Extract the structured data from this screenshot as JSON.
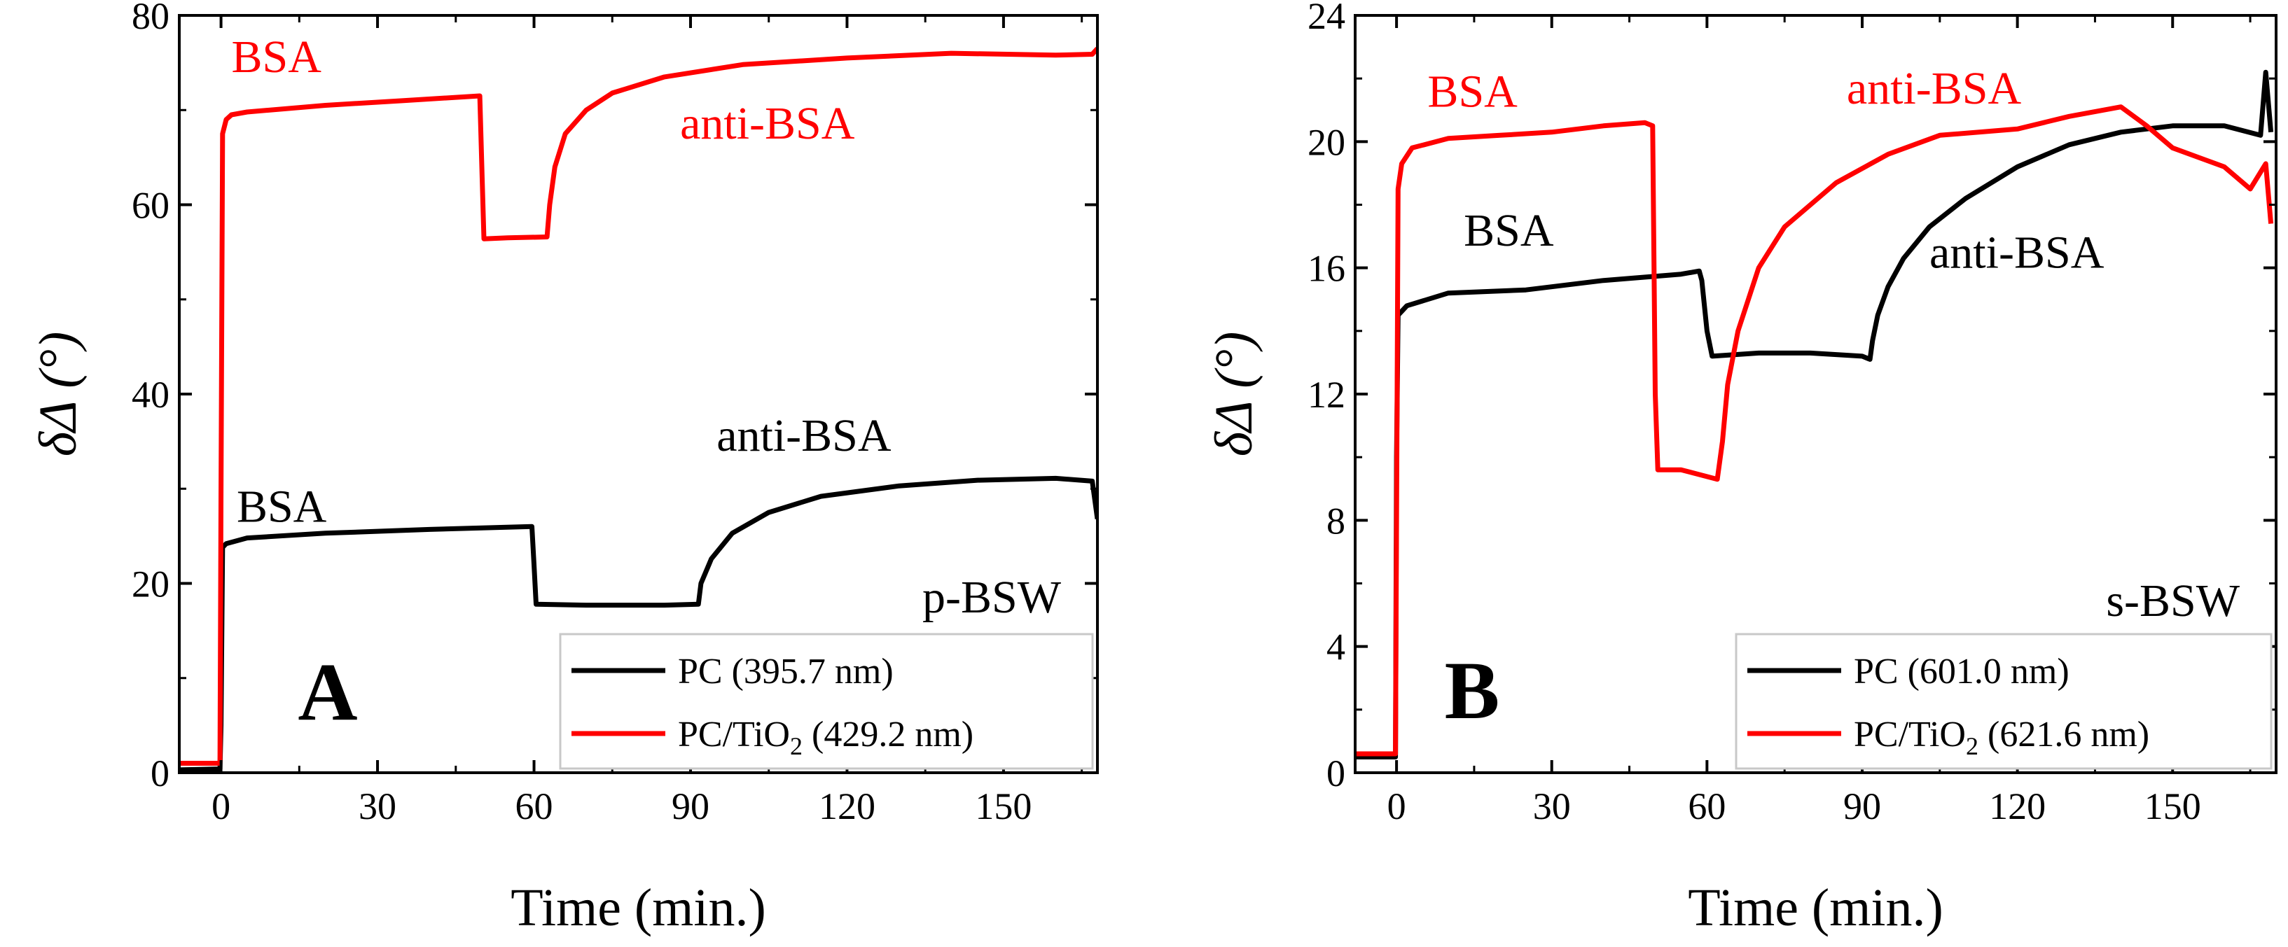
{
  "colors": {
    "pc": "#000000",
    "pc_tio2": "#ff0000",
    "axis": "#000000",
    "background": "#ffffff"
  },
  "chart_data": [
    {
      "type": "line",
      "panel_label": "A",
      "xlabel": "Time (min.)",
      "ylabel": "δΔ (°)",
      "xlim": [
        -8,
        168
      ],
      "ylim": [
        0,
        80
      ],
      "xticks": [
        "0",
        "30",
        "60",
        "90",
        "120",
        "150"
      ],
      "yticks": [
        "0",
        "20",
        "40",
        "60",
        "80"
      ],
      "mode_label": "p-BSW",
      "legend": {
        "position": "bottom-right",
        "items": [
          {
            "label": "PC (395.7 nm)"
          },
          {
            "label": "PC/TiO",
            "sub": "2",
            "label_rest": " (429.2 nm)"
          }
        ]
      },
      "series": [
        {
          "name": "PC (395.7 nm)",
          "color": "#000000",
          "x": [
            -8,
            -0.2,
            0,
            0.3,
            1,
            5,
            20,
            40,
            59.6,
            60,
            60.4,
            70,
            85,
            91.5,
            92,
            94,
            98,
            105,
            115,
            130,
            145,
            160,
            167,
            168
          ],
          "y": [
            0.3,
            0.4,
            5,
            23.8,
            24.2,
            24.8,
            25.3,
            25.7,
            26,
            22,
            17.8,
            17.7,
            17.7,
            17.8,
            20,
            22.6,
            25.3,
            27.5,
            29.2,
            30.3,
            30.9,
            31.1,
            30.8,
            26.8
          ],
          "annotations": [
            {
              "text": "BSA",
              "x": 3,
              "y": 26.5
            },
            {
              "text": "anti-BSA",
              "x": 95,
              "y": 34
            }
          ]
        },
        {
          "name": "PC/TiO2 (429.2 nm)",
          "color": "#ff0000",
          "x": [
            -8,
            -0.2,
            0,
            0.3,
            1,
            2,
            5,
            20,
            35,
            49.6,
            50,
            50.4,
            55,
            62.5,
            63,
            64,
            66,
            70,
            75,
            85,
            100,
            120,
            140,
            160,
            167,
            168
          ],
          "y": [
            1,
            1,
            30,
            67.5,
            69,
            69.5,
            69.8,
            70.5,
            71,
            71.5,
            64,
            56.4,
            56.5,
            56.6,
            60,
            64,
            67.5,
            70,
            71.8,
            73.5,
            74.8,
            75.5,
            76,
            75.8,
            75.9,
            76.5
          ],
          "annotations": [
            {
              "text": "BSA",
              "x": 2,
              "y": 74
            },
            {
              "text": "anti-BSA",
              "x": 88,
              "y": 67
            }
          ]
        }
      ]
    },
    {
      "type": "line",
      "panel_label": "B",
      "xlabel": "Time (min.)",
      "ylabel": "δΔ (°)",
      "xlim": [
        -8,
        170
      ],
      "ylim": [
        0,
        24
      ],
      "xticks": [
        "0",
        "30",
        "60",
        "90",
        "120",
        "150"
      ],
      "yticks": [
        "0",
        "4",
        "8",
        "12",
        "16",
        "20",
        "24"
      ],
      "mode_label": "s-BSW",
      "legend": {
        "position": "bottom-right",
        "items": [
          {
            "label": "PC (601.0 nm)"
          },
          {
            "label": "PC/TiO",
            "sub": "2",
            "label_rest": " (621.6 nm)"
          }
        ]
      },
      "series": [
        {
          "name": "PC (601.0 nm)",
          "color": "#000000",
          "x": [
            -8,
            -0.2,
            0,
            0.3,
            2,
            10,
            25,
            40,
            55,
            58.5,
            59,
            60,
            61,
            70,
            80,
            90,
            91.5,
            92,
            93,
            95,
            98,
            103,
            110,
            120,
            130,
            140,
            150,
            160,
            167,
            168,
            169
          ],
          "y": [
            0.5,
            0.5,
            10,
            14.5,
            14.8,
            15.2,
            15.3,
            15.6,
            15.8,
            15.9,
            15.6,
            14,
            13.2,
            13.3,
            13.3,
            13.2,
            13.1,
            13.7,
            14.5,
            15.4,
            16.3,
            17.3,
            18.2,
            19.2,
            19.9,
            20.3,
            20.5,
            20.5,
            20.2,
            22.2,
            20.3
          ],
          "annotations": [
            {
              "text": "BSA",
              "x": 13,
              "y": 16.7
            },
            {
              "text": "anti-BSA",
              "x": 103,
              "y": 16
            }
          ]
        },
        {
          "name": "PC/TiO2 (621.6 nm)",
          "color": "#ff0000",
          "x": [
            -8,
            -0.2,
            0,
            0.3,
            1,
            3,
            10,
            20,
            30,
            40,
            48,
            49.5,
            50,
            50.5,
            55,
            62,
            63,
            64,
            66,
            70,
            75,
            85,
            95,
            105,
            120,
            130,
            140,
            145,
            150,
            155,
            160,
            165,
            168,
            169
          ],
          "y": [
            0.6,
            0.6,
            8,
            18.5,
            19.3,
            19.8,
            20.1,
            20.2,
            20.3,
            20.5,
            20.6,
            20.5,
            12,
            9.6,
            9.6,
            9.3,
            10.5,
            12.3,
            14,
            16,
            17.3,
            18.7,
            19.6,
            20.2,
            20.4,
            20.8,
            21.1,
            20.5,
            19.8,
            19.5,
            19.2,
            18.5,
            19.3,
            17.4
          ],
          "annotations": [
            {
              "text": "BSA",
              "x": 6,
              "y": 21.1
            },
            {
              "text": "anti-BSA",
              "x": 87,
              "y": 21.2
            }
          ]
        }
      ]
    }
  ]
}
